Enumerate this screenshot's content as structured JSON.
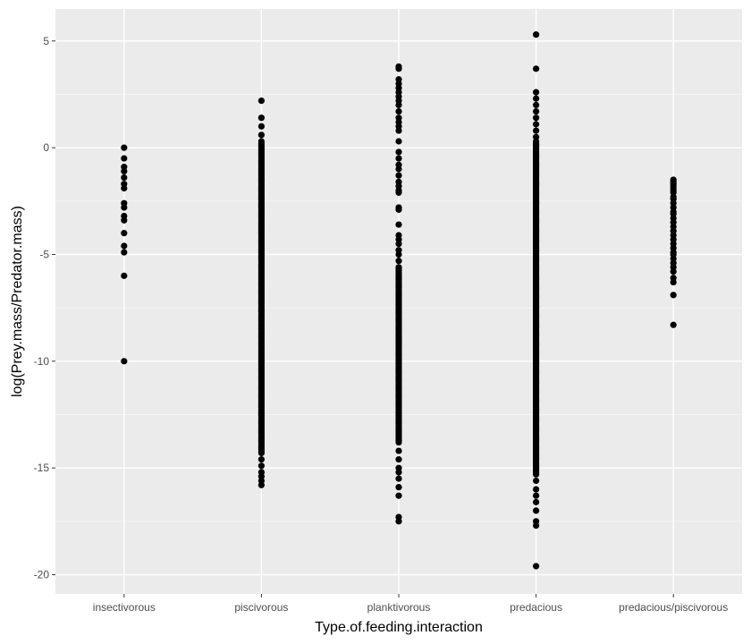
{
  "chart_data": {
    "type": "scatter",
    "xlabel": "Type.of.feeding.interaction",
    "ylabel": "log(Prey.mass/Predator.mass)",
    "categories": [
      "insectivorous",
      "piscivorous",
      "planktivorous",
      "predacious",
      "predacious/piscivorous"
    ],
    "ylim": [
      -20.9,
      6.5
    ],
    "y_ticks": [
      5,
      0,
      -5,
      -10,
      -15,
      -20
    ],
    "y_tick_labels": [
      "5",
      "0",
      "-5",
      "-10",
      "-15",
      "-20"
    ],
    "grid": true,
    "legend": "none",
    "point_color": "#000000",
    "panel_color": "#ebebeb",
    "series": [
      {
        "category": "insectivorous",
        "points": [
          0.0,
          -0.5,
          -0.9,
          -1.1,
          -1.4,
          -1.7,
          -1.9,
          -2.6,
          -2.8,
          -3.2,
          -3.4,
          -4.0,
          -4.6,
          -4.9,
          -6.0,
          -10.0
        ]
      },
      {
        "category": "piscivorous",
        "points": [
          2.2,
          1.4,
          1.0,
          0.6,
          0.3
        ],
        "dense_range": [
          -14.3,
          0.2
        ],
        "tail_points": [
          -14.6,
          -14.9,
          -15.2,
          -15.4,
          -15.6,
          -15.8
        ]
      },
      {
        "category": "planktivorous",
        "points": [
          3.8,
          3.7,
          3.2,
          3.0,
          2.8,
          2.6,
          2.4,
          2.2,
          2.0,
          1.7,
          1.4,
          1.2,
          1.0,
          0.8,
          0.3,
          -0.2,
          -0.5,
          -0.8,
          -1.0,
          -1.3,
          -1.6,
          -1.8,
          -2.0,
          -2.1,
          -2.8,
          -2.9,
          -3.6,
          -4.1,
          -4.3,
          -4.5,
          -4.8,
          -5.0,
          -5.3
        ],
        "dense_range": [
          -13.8,
          -5.6
        ],
        "tail_points": [
          -14.2,
          -14.6,
          -15.0,
          -15.2,
          -15.5,
          -15.9,
          -16.3,
          -17.3,
          -17.5
        ]
      },
      {
        "category": "predacious",
        "points": [
          5.3,
          3.7,
          2.6,
          2.3,
          2.0,
          1.7,
          1.4,
          1.1,
          0.8,
          0.5
        ],
        "dense_range": [
          -15.3,
          0.3
        ],
        "tail_points": [
          -15.6,
          -16.0,
          -16.3,
          -16.6,
          -17.0,
          -17.5,
          -17.7,
          -19.6
        ]
      },
      {
        "category": "predacious/piscivorous",
        "points": [
          -1.5,
          -1.6,
          -1.7,
          -1.8,
          -1.9,
          -2.0,
          -2.1,
          -2.3,
          -2.4,
          -2.6,
          -2.8,
          -3.0,
          -3.1,
          -3.3,
          -3.5,
          -3.7,
          -3.9,
          -4.1,
          -4.3,
          -4.5,
          -4.7,
          -4.9,
          -5.0,
          -5.2,
          -5.4,
          -5.6,
          -5.8,
          -6.1,
          -6.3,
          -6.9,
          -8.3
        ]
      }
    ]
  }
}
